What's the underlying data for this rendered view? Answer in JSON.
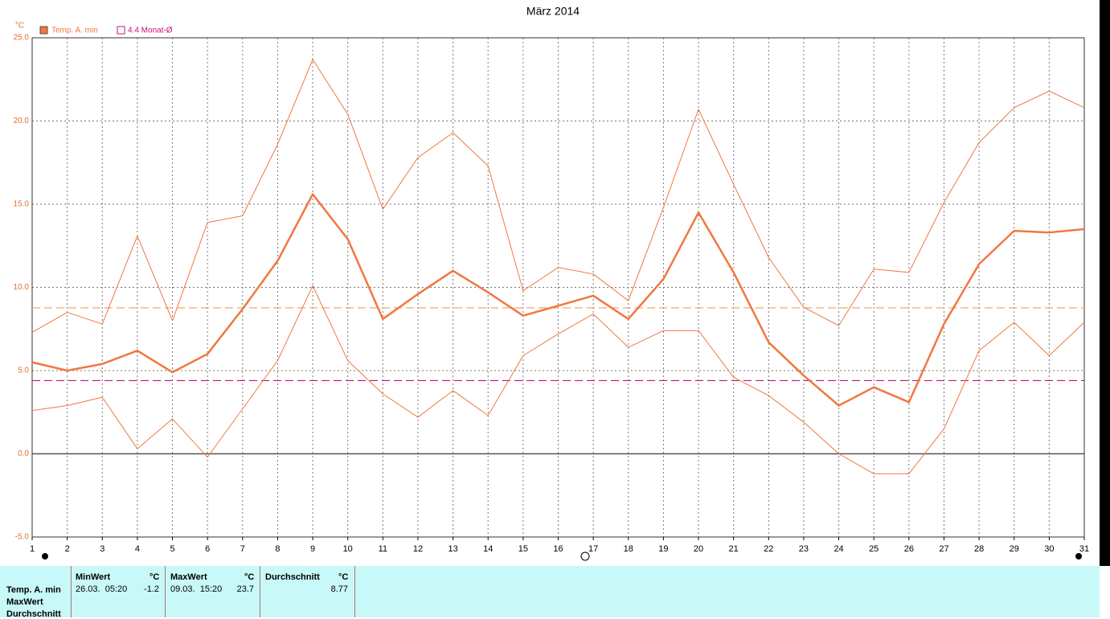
{
  "chart_data": {
    "type": "line",
    "title": "März 2014",
    "y_unit": "°C",
    "x": [
      1,
      2,
      3,
      4,
      5,
      6,
      7,
      8,
      9,
      10,
      11,
      12,
      13,
      14,
      15,
      16,
      17,
      18,
      19,
      20,
      21,
      22,
      23,
      24,
      25,
      26,
      27,
      28,
      29,
      30,
      31
    ],
    "xlim": [
      1,
      31
    ],
    "xticks": [
      1,
      2,
      3,
      4,
      5,
      6,
      7,
      8,
      9,
      10,
      11,
      12,
      13,
      14,
      15,
      16,
      17,
      18,
      19,
      20,
      21,
      22,
      23,
      24,
      25,
      26,
      27,
      28,
      29,
      30,
      31
    ],
    "ylim": [
      -5,
      25
    ],
    "yticks": [
      {
        "value": -5,
        "label": "-5.0"
      },
      {
        "value": 0,
        "label": "0.0"
      },
      {
        "value": 5,
        "label": "5.0"
      },
      {
        "value": 10,
        "label": "10.0"
      },
      {
        "value": 15,
        "label": "15.0"
      },
      {
        "value": 20,
        "label": "20.0"
      },
      {
        "value": 25,
        "label": "25.0"
      }
    ],
    "grid": true,
    "series": [
      {
        "name": "Temp. A. min",
        "color": "#f07840",
        "width": 2.5,
        "values": [
          5.5,
          5.0,
          5.4,
          6.2,
          4.9,
          6.0,
          8.7,
          11.6,
          15.6,
          12.9,
          8.1,
          9.6,
          11.0,
          9.7,
          8.3,
          8.9,
          9.5,
          8.1,
          10.5,
          14.5,
          10.9,
          6.7,
          4.7,
          2.9,
          4.0,
          3.1,
          7.8,
          11.4,
          13.4,
          13.3,
          13.5
        ]
      },
      {
        "color": "#f07840",
        "width": 1,
        "values": [
          7.3,
          8.5,
          7.8,
          13.1,
          8.0,
          13.9,
          14.3,
          18.6,
          23.7,
          20.4,
          14.7,
          17.8,
          19.3,
          17.3,
          9.8,
          11.2,
          10.8,
          9.2,
          14.8,
          20.7,
          16.2,
          11.8,
          8.8,
          7.7,
          11.1,
          10.9,
          15.1,
          18.7,
          20.8,
          21.8,
          20.8
        ]
      },
      {
        "color": "#f07840",
        "width": 1,
        "values": [
          2.6,
          2.9,
          3.4,
          0.3,
          2.1,
          -0.2,
          2.7,
          5.6,
          10.1,
          5.6,
          3.6,
          2.2,
          3.8,
          2.3,
          5.9,
          7.2,
          8.4,
          6.4,
          7.4,
          7.4,
          4.6,
          3.5,
          1.9,
          0.0,
          -1.2,
          -1.2,
          1.5,
          6.2,
          7.9,
          5.9,
          7.9
        ]
      }
    ],
    "ref_lines": [
      {
        "value": 4.4,
        "label": "4.4 Monat-Ø",
        "color": "#c8107a"
      },
      {
        "value": 8.77,
        "color": "#f0a050"
      }
    ]
  },
  "table": {
    "row_labels": [
      "Temp. A. min",
      "MaxWert",
      "Durchschnitt"
    ],
    "columns": [
      {
        "header": "MinWert",
        "unit": "°C",
        "date": "26.03.  05:20",
        "value": "-1.2"
      },
      {
        "header": "MaxWert",
        "unit": "°C",
        "date": "09.03.  15:20",
        "value": "23.7"
      },
      {
        "header": "Durchschnitt",
        "unit": "°C",
        "value": "8.77"
      }
    ]
  }
}
